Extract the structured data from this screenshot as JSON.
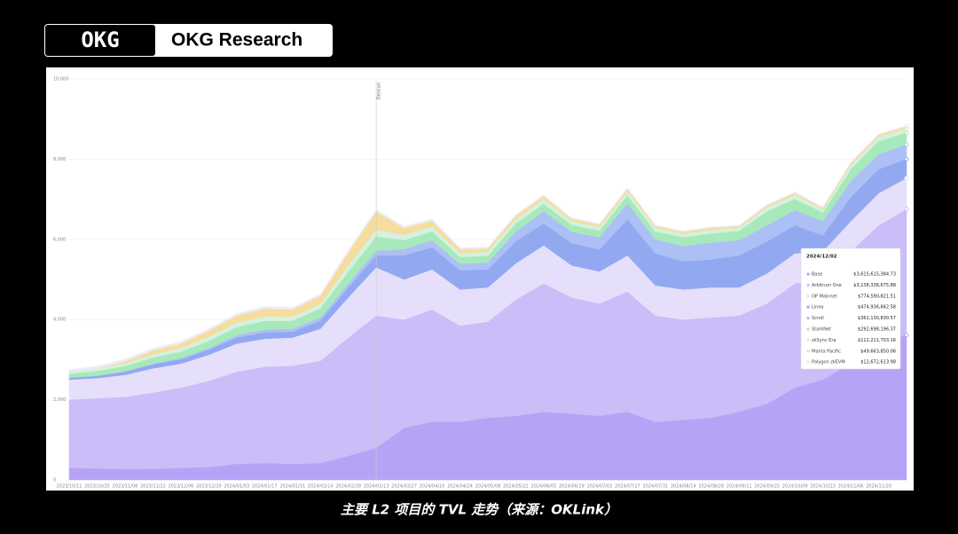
{
  "header": {
    "logo": "OKG",
    "title": "OKG Research"
  },
  "caption": "主要 L2 项目的 TVL 走势（来源：OKLink）",
  "chart_data": {
    "type": "stacked_area",
    "annotation": "Dencun",
    "annotation_index": 11,
    "x": [
      "2023/10/11",
      "2023/10/25",
      "2023/11/08",
      "2023/11/22",
      "2023/12/06",
      "2023/12/20",
      "2024/01/03",
      "2024/01/17",
      "2024/01/31",
      "2024/02/14",
      "2024/02/28",
      "2024/03/13",
      "2024/03/27",
      "2024/04/10",
      "2024/04/24",
      "2024/05/08",
      "2024/05/22",
      "2024/06/05",
      "2024/06/19",
      "2024/07/03",
      "2024/07/17",
      "2024/07/31",
      "2024/08/14",
      "2024/08/28",
      "2024/09/11",
      "2024/09/25",
      "2024/10/09",
      "2024/10/23",
      "2024/11/06",
      "2024/11/20",
      "2024/12/02"
    ],
    "ylim": [
      0,
      10000
    ],
    "yticks": [
      0,
      {
        "value": 2000,
        "label": "2,000"
      },
      {
        "value": 4000,
        "label": "4,000"
      },
      {
        "value": 6000,
        "label": "6,000"
      },
      {
        "value": 8000,
        "label": "8,000"
      },
      {
        "value": 10000,
        "label": "10,000"
      }
    ],
    "grid": true,
    "series": [
      {
        "name": "Base",
        "color": "#b7a3f6",
        "values": [
          300,
          290,
          270,
          280,
          300,
          320,
          400,
          420,
          400,
          420,
          600,
          800,
          1300,
          1450,
          1450,
          1550,
          1600,
          1700,
          1650,
          1600,
          1700,
          1450,
          1500,
          1550,
          1700,
          1900,
          2300,
          2500,
          2900,
          3400,
          3615.61538473
        ],
        "value_labels": [
          null,
          null,
          null,
          null,
          null,
          null,
          null,
          null,
          null,
          null,
          null,
          null,
          null,
          null,
          null,
          null,
          null,
          null,
          null,
          null,
          null,
          null,
          null,
          null,
          null,
          null,
          null,
          null,
          null,
          null,
          "$3,615,615,384.73"
        ]
      },
      {
        "name": "Arbitrum One",
        "color": "#cbbdf8",
        "values": [
          1700,
          1750,
          1800,
          1900,
          2000,
          2150,
          2300,
          2400,
          2450,
          2550,
          2950,
          3300,
          2700,
          2800,
          2400,
          2400,
          2900,
          3200,
          2900,
          2800,
          3000,
          2650,
          2500,
          2500,
          2400,
          2500,
          2600,
          2500,
          2800,
          2950,
          3138.33867588
        ],
        "value_labels": [
          null,
          null,
          null,
          null,
          null,
          null,
          null,
          null,
          null,
          null,
          null,
          null,
          null,
          null,
          null,
          null,
          null,
          null,
          null,
          null,
          null,
          null,
          null,
          null,
          null,
          null,
          null,
          null,
          null,
          null,
          "$3,138,338,675.88"
        ]
      },
      {
        "name": "OP Mainnet",
        "color": "#e6dffc",
        "values": [
          500,
          500,
          550,
          600,
          600,
          650,
          700,
          700,
          700,
          800,
          1000,
          1200,
          1000,
          1000,
          900,
          850,
          900,
          950,
          800,
          800,
          900,
          750,
          750,
          750,
          700,
          750,
          750,
          700,
          750,
          800,
          774.59082151
        ],
        "value_labels": [
          null,
          null,
          null,
          null,
          null,
          null,
          null,
          null,
          null,
          null,
          null,
          null,
          null,
          null,
          null,
          null,
          null,
          null,
          null,
          null,
          null,
          null,
          null,
          null,
          null,
          null,
          null,
          null,
          null,
          null,
          "$774,590,821.51"
        ]
      },
      {
        "name": "Linea",
        "color": "#92a9f1",
        "values": [
          50,
          60,
          80,
          100,
          110,
          130,
          150,
          160,
          150,
          200,
          250,
          300,
          600,
          550,
          480,
          450,
          550,
          550,
          550,
          550,
          900,
          800,
          700,
          700,
          800,
          800,
          700,
          400,
          600,
          600,
          474.93684258
        ],
        "value_labels": [
          null,
          null,
          null,
          null,
          null,
          null,
          null,
          null,
          null,
          null,
          null,
          null,
          null,
          null,
          null,
          null,
          null,
          null,
          null,
          null,
          null,
          null,
          null,
          null,
          null,
          null,
          null,
          null,
          null,
          null,
          "$474,936,842.58"
        ]
      },
      {
        "name": "Scroll",
        "color": "#adc0f6",
        "values": [
          0,
          0,
          10,
          20,
          30,
          40,
          60,
          70,
          70,
          80,
          100,
          120,
          150,
          180,
          160,
          170,
          250,
          300,
          290,
          300,
          400,
          350,
          380,
          420,
          380,
          400,
          380,
          350,
          400,
          380,
          362.13083057
        ],
        "value_labels": [
          null,
          null,
          null,
          null,
          null,
          null,
          null,
          null,
          null,
          null,
          null,
          null,
          null,
          null,
          null,
          null,
          null,
          null,
          null,
          null,
          null,
          null,
          null,
          null,
          null,
          null,
          null,
          null,
          null,
          null,
          "$362,130,830.57"
        ]
      },
      {
        "name": "StarkNet",
        "color": "#a8e9bb",
        "values": [
          100,
          120,
          130,
          150,
          160,
          180,
          200,
          220,
          200,
          230,
          300,
          350,
          230,
          220,
          170,
          170,
          200,
          190,
          170,
          170,
          200,
          200,
          220,
          230,
          230,
          350,
          280,
          220,
          300,
          320,
          292.69819637
        ],
        "value_labels": [
          null,
          null,
          null,
          null,
          null,
          null,
          null,
          null,
          null,
          null,
          null,
          null,
          null,
          null,
          null,
          null,
          null,
          null,
          null,
          null,
          null,
          null,
          null,
          null,
          null,
          null,
          null,
          null,
          null,
          null,
          "$292,698,196.37"
        ]
      },
      {
        "name": "zkSync Era",
        "color": "#d3f2df",
        "values": [
          50,
          60,
          70,
          80,
          90,
          100,
          110,
          110,
          100,
          110,
          150,
          170,
          130,
          120,
          100,
          100,
          110,
          110,
          90,
          90,
          100,
          90,
          90,
          90,
          80,
          100,
          100,
          80,
          100,
          110,
          112.21170316
        ],
        "value_labels": [
          null,
          null,
          null,
          null,
          null,
          null,
          null,
          null,
          null,
          null,
          null,
          null,
          null,
          null,
          null,
          null,
          null,
          null,
          null,
          null,
          null,
          null,
          null,
          null,
          null,
          null,
          null,
          null,
          null,
          null,
          "$112,211,703.16"
        ]
      },
      {
        "name": "Manta Pacific",
        "color": "#f6dd9e",
        "values": [
          0,
          0,
          50,
          100,
          110,
          150,
          180,
          190,
          180,
          200,
          330,
          450,
          170,
          150,
          100,
          80,
          80,
          80,
          60,
          60,
          60,
          50,
          50,
          50,
          40,
          50,
          50,
          40,
          50,
          50,
          49.66385006
        ],
        "value_labels": [
          null,
          null,
          null,
          null,
          null,
          null,
          null,
          null,
          null,
          null,
          null,
          null,
          null,
          null,
          null,
          null,
          null,
          null,
          null,
          null,
          null,
          null,
          null,
          null,
          null,
          null,
          null,
          null,
          null,
          null,
          "$49,663,850.06"
        ]
      },
      {
        "name": "Polygon zkEVM",
        "color": "#ecebf8",
        "values": [
          50,
          50,
          50,
          50,
          50,
          50,
          50,
          50,
          50,
          50,
          50,
          50,
          40,
          40,
          30,
          30,
          30,
          30,
          25,
          25,
          25,
          20,
          20,
          20,
          20,
          20,
          20,
          15,
          15,
          15,
          12.67261398
        ],
        "value_labels": [
          null,
          null,
          null,
          null,
          null,
          null,
          null,
          null,
          null,
          null,
          null,
          null,
          null,
          null,
          null,
          null,
          null,
          null,
          null,
          null,
          null,
          null,
          null,
          null,
          null,
          null,
          null,
          null,
          null,
          null,
          "$12,672,613.98"
        ]
      }
    ]
  }
}
